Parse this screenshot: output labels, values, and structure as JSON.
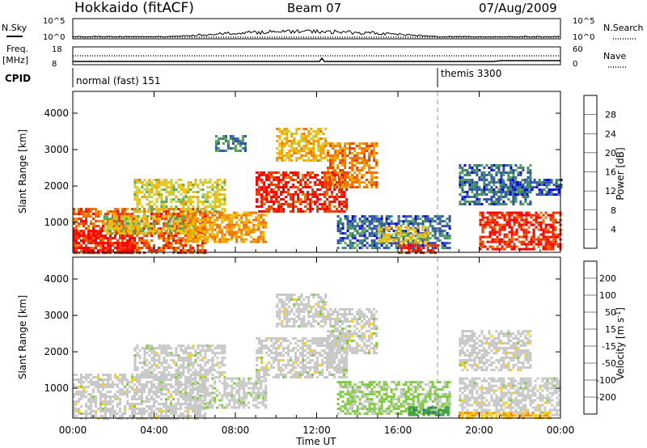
{
  "header": {
    "title": "Hokkaido (fitACF)",
    "beam": "Beam 07",
    "date": "07/Aug/2009"
  },
  "sky_panel": {
    "left_label": "N.Sky",
    "right_label": "N.Search",
    "left_ticks": [
      "10^5",
      "10^0"
    ],
    "right_ticks": [
      "10^5",
      "10^0"
    ]
  },
  "freq_panel": {
    "left_label_line1": "Freq.",
    "left_label_line2": "[MHz]",
    "right_label": "Nave",
    "left_ticks": [
      "18",
      "8"
    ],
    "right_ticks": [
      "60",
      "0"
    ]
  },
  "cpid_panel": {
    "label": "CPID",
    "modes": [
      {
        "name": "normal (fast) 151",
        "start_hour": 0
      },
      {
        "name": "themis 3300",
        "start_hour": 18
      }
    ]
  },
  "x_axis": {
    "label": "Time UT",
    "ticks": [
      "00:00",
      "04:00",
      "08:00",
      "12:00",
      "16:00",
      "20:00",
      "00:00"
    ]
  },
  "colors": {
    "power": [
      "#0000ee",
      "#2e4fb4",
      "#3e8a6a",
      "#5aa553",
      "#b8d24a",
      "#f2c200",
      "#f5a000",
      "#f17000",
      "#ea3e00",
      "#ff0000"
    ],
    "velocity": [
      "#ff0000",
      "#ff5400",
      "#ff8c00",
      "#ffd000",
      "#c8c8c8",
      "#7ecb3c",
      "#3ba23d",
      "#2f5dae",
      "#1e40b0"
    ]
  },
  "chart_data": [
    {
      "type": "heatmap",
      "name": "power",
      "ylabel": "Slant Range [km]",
      "xlabel": "Time UT",
      "ylim": [
        180,
        4600
      ],
      "xlim": [
        0,
        24
      ],
      "yticks": [
        "1000",
        "2000",
        "3000",
        "4000"
      ],
      "colorbar_label": "Power [dB]",
      "colorbar_ticks": [
        "4",
        "8",
        "12",
        "16",
        "20",
        "24",
        "28"
      ],
      "colorbar_range": [
        0,
        30
      ],
      "echo_regions": [
        {
          "t0": 0.0,
          "t1": 6.5,
          "r0": 200,
          "r1": 1400,
          "value": 24
        },
        {
          "t0": 0.0,
          "t1": 3.0,
          "r0": 200,
          "r1": 800,
          "value": 29
        },
        {
          "t0": 1.5,
          "t1": 6.0,
          "r0": 700,
          "r1": 1200,
          "value": 14
        },
        {
          "t0": 3.0,
          "t1": 7.5,
          "r0": 1300,
          "r1": 2200,
          "value": 15
        },
        {
          "t0": 5.5,
          "t1": 9.5,
          "r0": 500,
          "r1": 1300,
          "value": 20
        },
        {
          "t0": 7.0,
          "t1": 8.5,
          "r0": 3000,
          "r1": 3400,
          "value": 8
        },
        {
          "t0": 9.0,
          "t1": 13.5,
          "r0": 1300,
          "r1": 2400,
          "value": 27
        },
        {
          "t0": 10.0,
          "t1": 12.5,
          "r0": 2700,
          "r1": 3600,
          "value": 18
        },
        {
          "t0": 12.5,
          "t1": 15.0,
          "r0": 2000,
          "r1": 3200,
          "value": 22
        },
        {
          "t0": 13.0,
          "t1": 18.5,
          "r0": 300,
          "r1": 1200,
          "value": 6
        },
        {
          "t0": 15.0,
          "t1": 17.5,
          "r0": 500,
          "r1": 900,
          "value": 16
        },
        {
          "t0": 16.0,
          "t1": 18.0,
          "r0": 200,
          "r1": 400,
          "value": 27
        },
        {
          "t0": 19.0,
          "t1": 22.5,
          "r0": 1500,
          "r1": 2600,
          "value": 6
        },
        {
          "t0": 20.0,
          "t1": 24.0,
          "r0": 300,
          "r1": 1300,
          "value": 27
        },
        {
          "t0": 21.0,
          "t1": 24.0,
          "r0": 1800,
          "r1": 2200,
          "value": 5
        }
      ]
    },
    {
      "type": "heatmap",
      "name": "velocity",
      "ylabel": "Slant Range [km]",
      "xlabel": "Time UT",
      "ylim": [
        180,
        4600
      ],
      "xlim": [
        0,
        24
      ],
      "yticks": [
        "1000",
        "2000",
        "3000",
        "4000"
      ],
      "colorbar_label": "Velocity [m s^-1]",
      "colorbar_ticks": [
        "200",
        "100",
        "50",
        "15",
        "-15",
        "-50",
        "-100",
        "-200"
      ],
      "colorbar_range": [
        -250,
        250
      ],
      "echo_regions": [
        {
          "t0": 0.0,
          "t1": 6.5,
          "r0": 200,
          "r1": 1400,
          "value": 0
        },
        {
          "t0": 3.0,
          "t1": 7.5,
          "r0": 1300,
          "r1": 2200,
          "value": 0
        },
        {
          "t0": 5.5,
          "t1": 9.5,
          "r0": 500,
          "r1": 1300,
          "value": 5
        },
        {
          "t0": 9.0,
          "t1": 13.5,
          "r0": 1300,
          "r1": 2400,
          "value": 0
        },
        {
          "t0": 10.0,
          "t1": 12.5,
          "r0": 2700,
          "r1": 3600,
          "value": 0
        },
        {
          "t0": 12.5,
          "t1": 15.0,
          "r0": 2000,
          "r1": 3200,
          "value": 0
        },
        {
          "t0": 13.0,
          "t1": 18.5,
          "r0": 300,
          "r1": 1200,
          "value": 40
        },
        {
          "t0": 16.5,
          "t1": 18.5,
          "r0": 300,
          "r1": 500,
          "value": 120
        },
        {
          "t0": 19.0,
          "t1": 24.0,
          "r0": 300,
          "r1": 1300,
          "value": 0
        },
        {
          "t0": 19.0,
          "t1": 22.5,
          "r0": 1500,
          "r1": 2600,
          "value": 0
        },
        {
          "t0": 19.0,
          "t1": 23.5,
          "r0": 180,
          "r1": 350,
          "value": -80
        }
      ]
    }
  ]
}
